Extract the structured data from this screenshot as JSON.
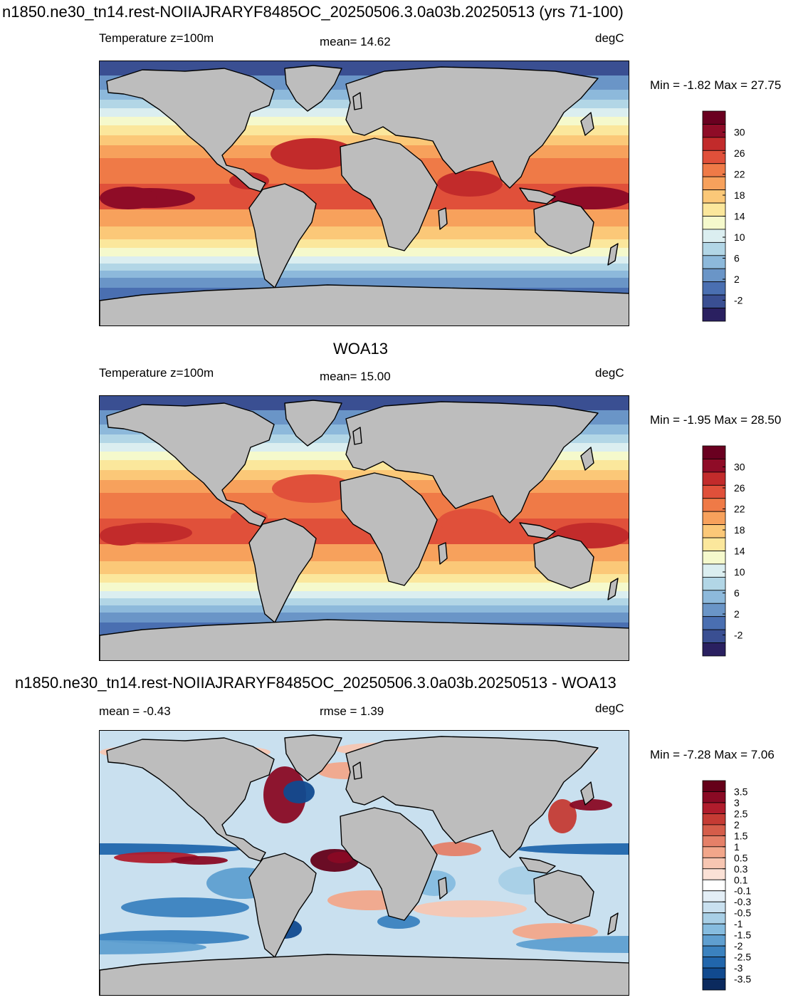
{
  "page_title": "n1850.ne30_tn14.rest-NOIIAJRARYF8485OC_20250506.3.0a03b.20250513 (yrs 71-100)",
  "colors": {
    "land": "#bdbdbd",
    "temperature_ramp": [
      "#2a2060",
      "#3a4f92",
      "#4a6fb1",
      "#6a95c7",
      "#8db9db",
      "#b2d6e6",
      "#dbeef0",
      "#f5f9cc",
      "#fbe79c",
      "#fbc878",
      "#f7a15c",
      "#ef7a47",
      "#e0503a",
      "#c22b2b",
      "#8f0c27",
      "#6a0020"
    ],
    "difference_ramp": [
      "#0b2a5e",
      "#114a8f",
      "#2166ac",
      "#3b82bf",
      "#5f9fd0",
      "#86bcdf",
      "#a8cfe6",
      "#c9e0ef",
      "#e3eef6",
      "#ffffff",
      "#fbe1d6",
      "#f7c6b2",
      "#f2a68a",
      "#e58068",
      "#d55d4a",
      "#c53b34",
      "#b01c2c",
      "#8a0a24",
      "#650019"
    ]
  },
  "chart_data": [
    {
      "type": "heatmap",
      "name": "model",
      "field_label": "Temperature z=100m",
      "mean_text": "mean=  14.62",
      "units": "degC",
      "min_max_text": "Min =  -1.82 Max =  27.75",
      "min": -1.82,
      "max": 27.75,
      "mean": 14.62,
      "colorbar_labels": [
        "30",
        "26",
        "22",
        "18",
        "14",
        "10",
        "6",
        "2",
        "-2"
      ]
    },
    {
      "type": "heatmap",
      "name": "WOA13",
      "title": "WOA13",
      "field_label": "Temperature z=100m",
      "mean_text": "mean=  15.00",
      "units": "degC",
      "min_max_text": "Min =  -1.95 Max =  28.50",
      "min": -1.95,
      "max": 28.5,
      "mean": 15.0,
      "colorbar_labels": [
        "30",
        "26",
        "22",
        "18",
        "14",
        "10",
        "6",
        "2",
        "-2"
      ]
    },
    {
      "type": "heatmap",
      "name": "difference",
      "title": "n1850.ne30_tn14.rest-NOIIAJRARYF8485OC_20250506.3.0a03b.20250513 - WOA13",
      "mean_text": "mean =  -0.43",
      "rmse_text": "rmse =   1.39",
      "units": "degC",
      "min_max_text": "Min =  -7.28 Max =   7.06",
      "min": -7.28,
      "max": 7.06,
      "mean": -0.43,
      "rmse": 1.39,
      "colorbar_labels": [
        "3.5",
        "3",
        "2.5",
        "2",
        "1.5",
        "1",
        "0.5",
        "0.3",
        "0.1",
        "-0.1",
        "-0.3",
        "-0.5",
        "-1",
        "-1.5",
        "-2",
        "-2.5",
        "-3",
        "-3.5"
      ]
    }
  ]
}
